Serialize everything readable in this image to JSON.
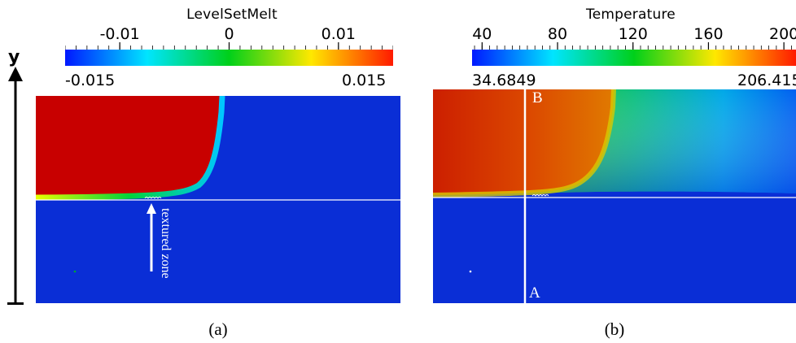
{
  "panel_a": {
    "colorbar": {
      "title": "LevelSetMelt",
      "ticks": [
        {
          "text": "-0.01",
          "value": -0.01
        },
        {
          "text": "0",
          "value": 0
        },
        {
          "text": "0.01",
          "value": 0.01
        }
      ],
      "range_min_text": "-0.015",
      "range_max_text": "0.015",
      "range": [
        -0.015,
        0.015
      ],
      "colormap": [
        "#0018ff",
        "#00e5ff",
        "#00d01a",
        "#ffe800",
        "#ff1a00"
      ]
    },
    "annotation": "textured zone",
    "caption": "(a)"
  },
  "panel_b": {
    "colorbar": {
      "title": "Temperature",
      "ticks": [
        {
          "text": "40",
          "value": 40
        },
        {
          "text": "80",
          "value": 80
        },
        {
          "text": "120",
          "value": 120
        },
        {
          "text": "160",
          "value": 160
        },
        {
          "text": "200",
          "value": 200
        }
      ],
      "range_min_text": "34.6849",
      "range_max_text": "206.415",
      "range": [
        34.6849,
        206.415
      ],
      "colormap": [
        "#0018ff",
        "#00e5ff",
        "#00d01a",
        "#ffe800",
        "#ff1a00"
      ]
    },
    "line_labels": {
      "top": "B",
      "bottom": "A"
    },
    "caption": "(b)"
  },
  "y_axis_label": "y",
  "colors": {
    "melt_red": "#c80000",
    "solid_blue": "#0a2ed6",
    "interface_line": "#ffffff"
  }
}
